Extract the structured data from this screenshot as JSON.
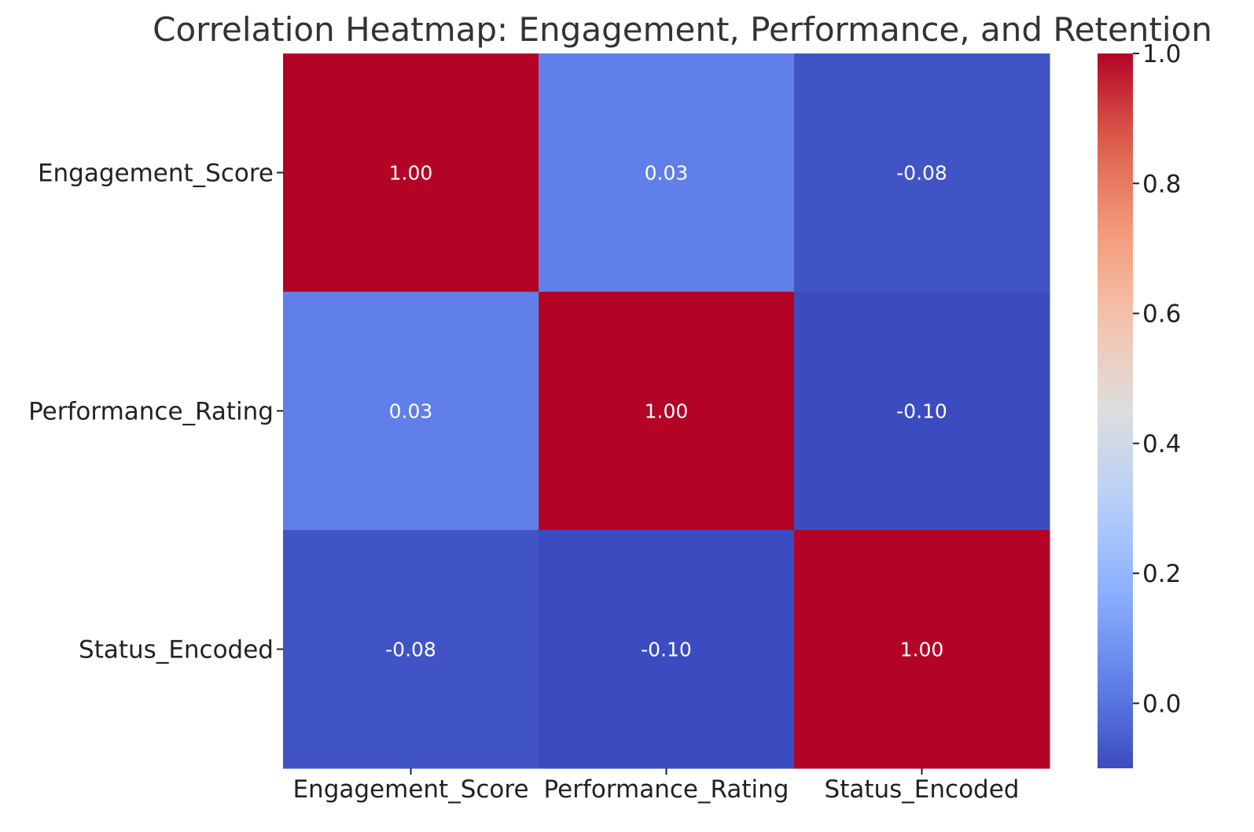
{
  "chart_data": {
    "type": "heatmap",
    "title": "Correlation Heatmap: Engagement, Performance, and Retention",
    "x_categories": [
      "Engagement_Score",
      "Performance_Rating",
      "Status_Encoded"
    ],
    "y_categories": [
      "Engagement_Score",
      "Performance_Rating",
      "Status_Encoded"
    ],
    "values": [
      [
        1.0,
        0.03,
        -0.08
      ],
      [
        0.03,
        1.0,
        -0.1
      ],
      [
        -0.08,
        -0.1,
        1.0
      ]
    ],
    "cell_labels": [
      [
        "1.00",
        "0.03",
        "-0.08"
      ],
      [
        "0.03",
        "1.00",
        "-0.10"
      ],
      [
        "-0.08",
        "-0.10",
        "1.00"
      ]
    ],
    "colormap": "coolwarm",
    "vmin": -0.1,
    "vmax": 1.0,
    "colorbar": {
      "ticks": [
        0.0,
        0.2,
        0.4,
        0.6,
        0.8,
        1.0
      ],
      "tick_labels": [
        "0.0",
        "0.2",
        "0.4",
        "0.6",
        "0.8",
        "1.0"
      ],
      "placement": "right"
    },
    "colors": {
      "low": "#3b4cc0",
      "mid": "#dddddd",
      "high": "#b40426"
    }
  }
}
